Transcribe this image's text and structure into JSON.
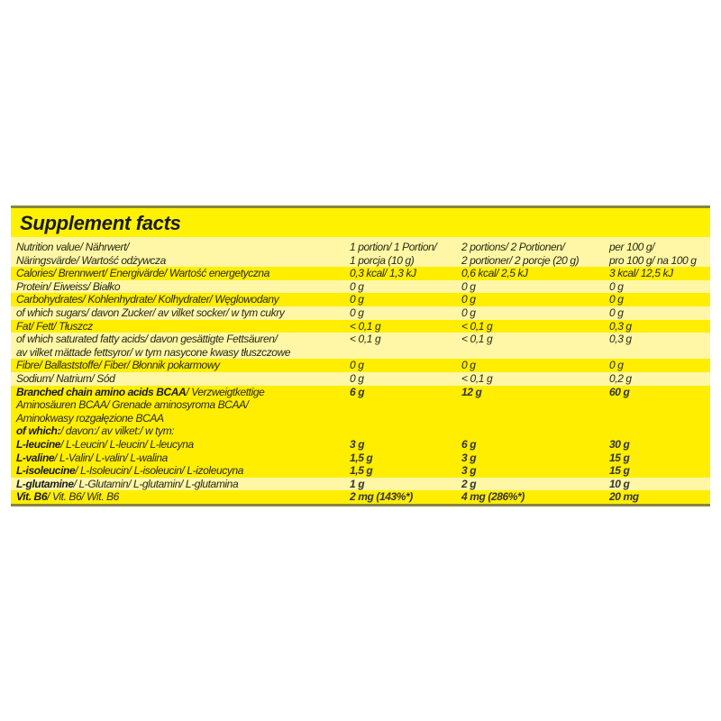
{
  "title": "Supplement facts",
  "colors": {
    "panel": "#fff200",
    "light_row": "#fff7a6",
    "border": "#8a8540"
  },
  "rows": [
    {
      "bold": "",
      "label": "Nutrition value/ Nährwert/\nNäringsvärde/ Wartość odżywcza",
      "v1": "1 portion/ 1 Portion/\n1 porcja (10 g)",
      "v2": "2 portions/ 2 Portionen/\n2 portioner/ 2 porcje (20 g)",
      "v3": "per 100 g/\npro 100 g/ na 100 g",
      "shade": "light",
      "bold_values": false
    },
    {
      "bold": "",
      "label": "Calories/ Brennwert/ Energivärde/ Wartość energetyczna",
      "v1": "0,3 kcal/ 1,3 kJ",
      "v2": "0,6 kcal/ 2,5 kJ",
      "v3": "3 kcal/ 12,5 kJ",
      "shade": "bright",
      "bold_values": false
    },
    {
      "bold": "",
      "label": "Protein/ Eiweiss/ Białko",
      "v1": "0 g",
      "v2": "0 g",
      "v3": "0 g",
      "shade": "light",
      "bold_values": false
    },
    {
      "bold": "",
      "label": "Carbohydrates/ Kohlenhydrate/ Kolhydrater/ Węglowodany",
      "v1": "0 g",
      "v2": "0 g",
      "v3": "0 g",
      "shade": "bright",
      "bold_values": false
    },
    {
      "bold": "",
      "label": "of which sugars/ davon Zucker/ av vilket socker/ w tym cukry",
      "v1": "0 g",
      "v2": "0 g",
      "v3": "0 g",
      "shade": "light",
      "bold_values": false
    },
    {
      "bold": "",
      "label": "Fat/ Fett/ Tłuszcz",
      "v1": "< 0,1 g",
      "v2": "< 0,1 g",
      "v3": "0,3 g",
      "shade": "bright",
      "bold_values": false
    },
    {
      "bold": "",
      "label": "of which saturated fatty acids/ davon gesättigte Fettsäuren/\nav vilket mättade fettsyror/ w tym nasycone kwasy tłuszczowe",
      "v1": "< 0,1 g",
      "v2": "< 0,1 g",
      "v3": "0,3 g",
      "shade": "light",
      "bold_values": false
    },
    {
      "bold": "",
      "label": "Fibre/ Ballaststoffe/ Fiber/ Błonnik pokarmowy",
      "v1": "0 g",
      "v2": "0 g",
      "v3": "0 g",
      "shade": "bright",
      "bold_values": false
    },
    {
      "bold": "",
      "label": "Sodium/ Natrium/ Sód",
      "v1": "0 g",
      "v2": "< 0,1 g",
      "v3": "0,2 g",
      "shade": "light",
      "bold_values": false
    },
    {
      "bold": "Branched chain amino acids BCAA",
      "label": "/ Verzweigtkettige\nAminosäuren BCAA/ Grenade aminosyroma BCAA/\nAminokwasy rozgałęzione BCAA",
      "v1": "6 g",
      "v2": "12 g",
      "v3": "60 g",
      "shade": "bright",
      "bold_values": true
    },
    {
      "bold": "of which:",
      "label": "/ davon:/ av vilket:/ w tym:",
      "v1": "",
      "v2": "",
      "v3": "",
      "shade": "bright",
      "bold_values": true
    },
    {
      "bold": "L-leucine",
      "label": "/ L-Leucin/ L-leucin/ L-leucyna",
      "v1": "3 g",
      "v2": "6 g",
      "v3": "30 g",
      "shade": "bright",
      "bold_values": true
    },
    {
      "bold": "L-valine",
      "label": "/ L-Valin/ L-valin/ L-walina",
      "v1": "1,5 g",
      "v2": "3 g",
      "v3": "15 g",
      "shade": "bright",
      "bold_values": true
    },
    {
      "bold": "L-isoleucine",
      "label": "/ L-Isoleucin/ L-isoleucin/ L-izoleucyna",
      "v1": "1,5 g",
      "v2": "3 g",
      "v3": "15 g",
      "shade": "bright",
      "bold_values": true
    },
    {
      "bold": "L-glutamine",
      "label": "/ L-Glutamin/ L-glutamin/ L-glutamina",
      "v1": "1 g",
      "v2": "2 g",
      "v3": "10 g",
      "shade": "light",
      "bold_values": true
    },
    {
      "bold": "Vit. B6",
      "label": "/ Vit. B6/ Wit. B6",
      "v1": "2 mg (143%*)",
      "v2": "4 mg (286%*)",
      "v3": "20 mg",
      "shade": "bright",
      "bold_values": true
    }
  ]
}
